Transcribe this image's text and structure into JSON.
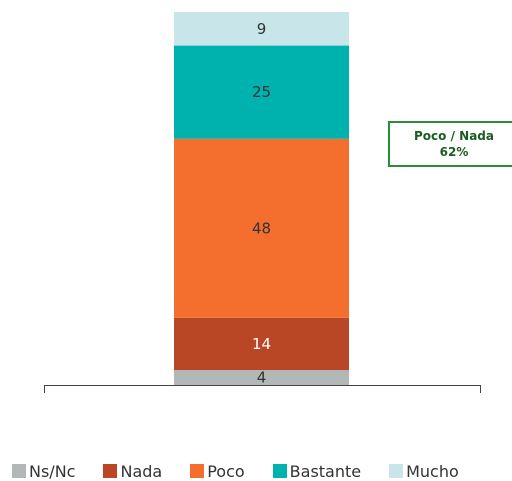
{
  "chart_data": {
    "type": "bar",
    "stacked": true,
    "categories": [
      ""
    ],
    "series": [
      {
        "name": "Ns/Nc",
        "values": [
          4
        ],
        "color": "#b2b7b8",
        "label_color": "#333333"
      },
      {
        "name": "Nada",
        "values": [
          14
        ],
        "color": "#b94624",
        "label_color": "#ffffff"
      },
      {
        "name": "Poco",
        "values": [
          48
        ],
        "color": "#f46f2e",
        "label_color": "#333333"
      },
      {
        "name": "Bastante",
        "values": [
          25
        ],
        "color": "#00b2ad",
        "label_color": "#333333"
      },
      {
        "name": "Mucho",
        "values": [
          9
        ],
        "color": "#c8e6ea",
        "label_color": "#333333"
      }
    ],
    "ylim": [
      0,
      100
    ],
    "grid": false,
    "legend_position": "bottom",
    "annotation": {
      "label": "Poco / Nada",
      "value": "62%",
      "border_color": "#2e8b3a"
    }
  }
}
